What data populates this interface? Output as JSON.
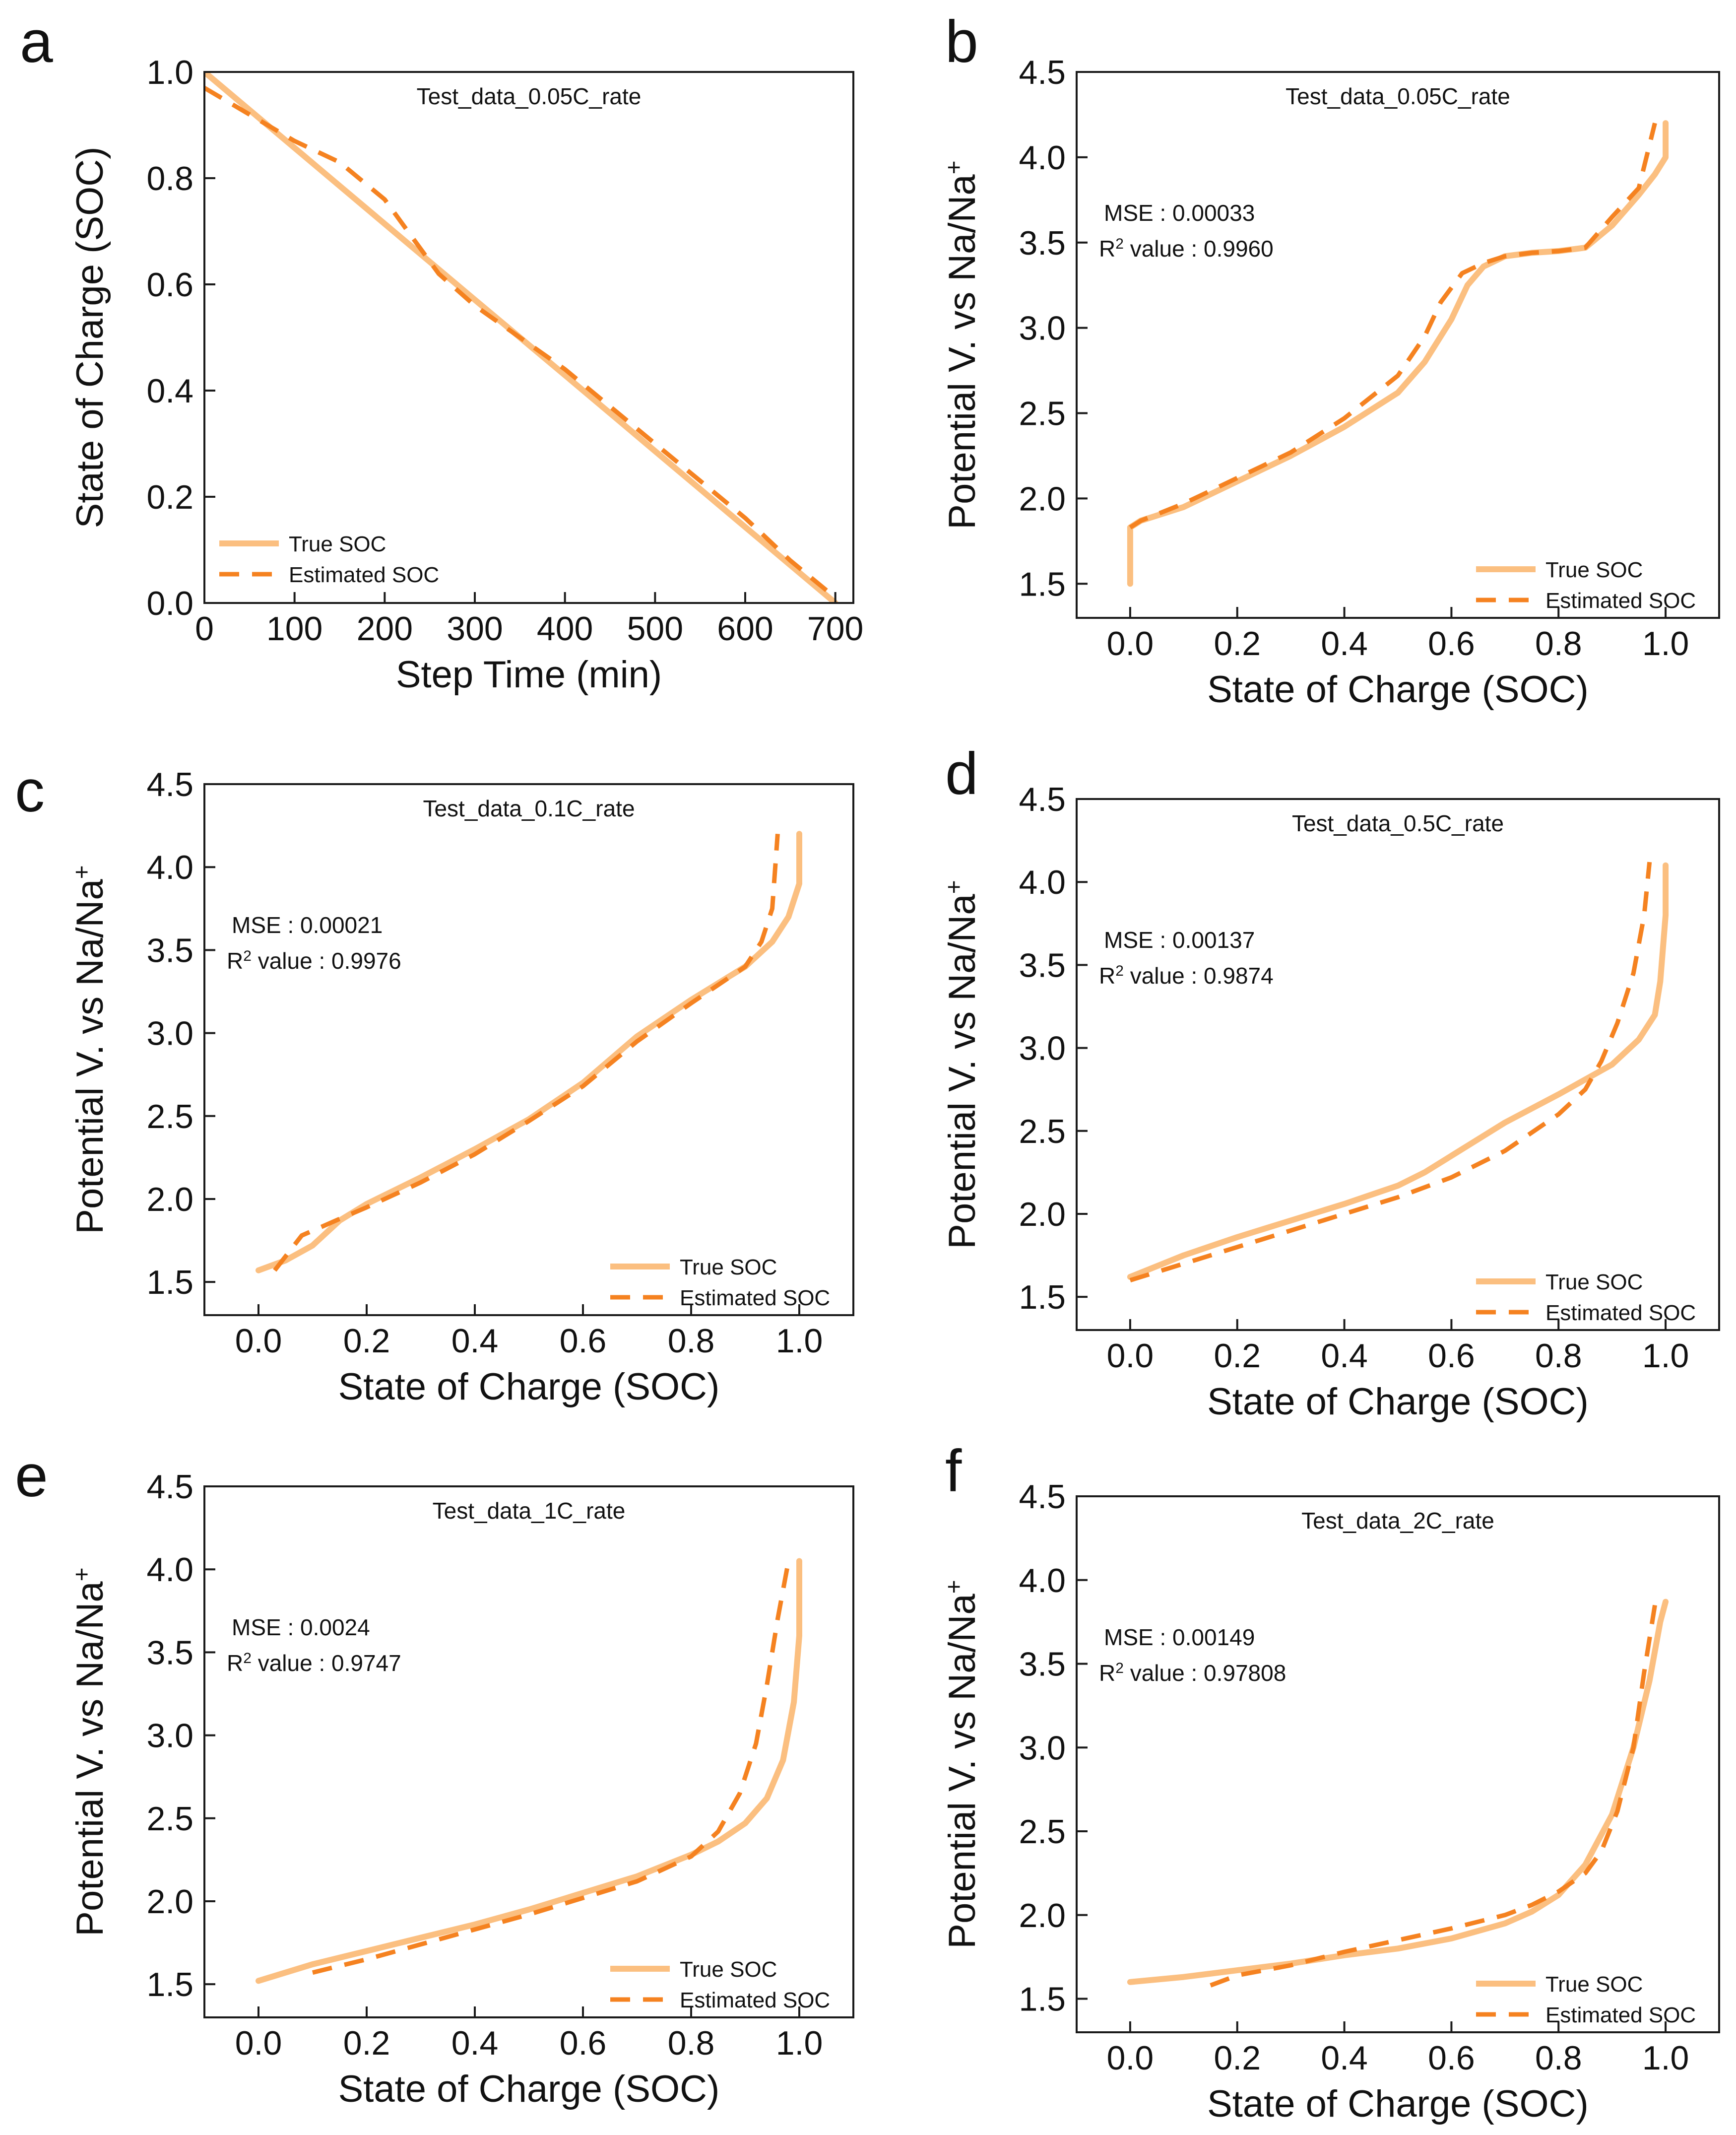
{
  "colors": {
    "true_soc": "#FBBF80",
    "estimated_soc": "#F58220",
    "axis": "#1a1a1a"
  },
  "chart_data": [
    {
      "panel": "a",
      "type": "line",
      "title": "Test_data_0.05C_rate",
      "xlabel": "Step Time (min)",
      "ylabel": "State of Charge (SOC)",
      "xlim": [
        0,
        720
      ],
      "ylim": [
        0,
        1.0
      ],
      "xticks": [
        0,
        100,
        200,
        300,
        400,
        500,
        600,
        700
      ],
      "yticks": [
        0.0,
        0.2,
        0.4,
        0.6,
        0.8,
        1.0
      ],
      "xtick_labels": [
        "0",
        "100",
        "200",
        "300",
        "400",
        "500",
        "600",
        "700"
      ],
      "ytick_labels": [
        "0.0",
        "0.2",
        "0.4",
        "0.6",
        "0.8",
        "1.0"
      ],
      "legend": {
        "position": "bottom-left",
        "entries": [
          "True SOC",
          "Estimated SOC"
        ]
      },
      "series": [
        {
          "name": "True SOC",
          "style": "solid",
          "x": [
            0,
            100,
            200,
            300,
            400,
            500,
            600,
            700
          ],
          "y": [
            1.0,
            0.857,
            0.714,
            0.571,
            0.429,
            0.286,
            0.143,
            0.0
          ]
        },
        {
          "name": "Estimated SOC",
          "style": "dashed",
          "x": [
            0,
            50,
            100,
            150,
            200,
            230,
            260,
            300,
            350,
            400,
            450,
            500,
            550,
            600,
            650,
            700
          ],
          "y": [
            0.97,
            0.92,
            0.87,
            0.83,
            0.76,
            0.69,
            0.62,
            0.56,
            0.5,
            0.44,
            0.37,
            0.3,
            0.23,
            0.16,
            0.08,
            0.01
          ]
        }
      ]
    },
    {
      "panel": "b",
      "type": "line",
      "title": "Test_data_0.05C_rate",
      "xlabel": "State of Charge (SOC)",
      "ylabel": "Potential V. vs Na/Na",
      "ylabel_superscript": "+",
      "xlim": [
        -0.1,
        1.1
      ],
      "ylim": [
        1.3,
        4.5
      ],
      "xticks": [
        0.0,
        0.2,
        0.4,
        0.6,
        0.8,
        1.0
      ],
      "yticks": [
        1.5,
        2.0,
        2.5,
        3.0,
        3.5,
        4.0,
        4.5
      ],
      "xtick_labels": [
        "0.0",
        "0.2",
        "0.4",
        "0.6",
        "0.8",
        "1.0"
      ],
      "ytick_labels": [
        "1.5",
        "2.0",
        "2.5",
        "3.0",
        "3.5",
        "4.0",
        "4.5"
      ],
      "mse_label": "MSE : 0.00033",
      "r2_prefix": "R",
      "r2_sup": "2",
      "r2_text": " value : 0.9960",
      "legend": {
        "position": "bottom-right",
        "entries": [
          "True SOC",
          "Estimated SOC"
        ]
      },
      "series": [
        {
          "name": "True SOC",
          "style": "solid",
          "x": [
            0.0,
            0.0,
            0.02,
            0.1,
            0.2,
            0.3,
            0.4,
            0.5,
            0.55,
            0.6,
            0.63,
            0.66,
            0.7,
            0.75,
            0.8,
            0.85,
            0.9,
            0.95,
            0.98,
            1.0,
            1.0
          ],
          "y": [
            1.5,
            1.83,
            1.87,
            1.95,
            2.1,
            2.25,
            2.42,
            2.62,
            2.8,
            3.05,
            3.25,
            3.36,
            3.42,
            3.44,
            3.45,
            3.47,
            3.6,
            3.78,
            3.9,
            4.0,
            4.2
          ]
        },
        {
          "name": "Estimated SOC",
          "style": "dashed",
          "x": [
            0.0,
            0.02,
            0.1,
            0.2,
            0.3,
            0.4,
            0.5,
            0.55,
            0.58,
            0.62,
            0.66,
            0.7,
            0.75,
            0.8,
            0.85,
            0.9,
            0.95,
            0.98
          ],
          "y": [
            1.83,
            1.87,
            1.97,
            2.12,
            2.27,
            2.47,
            2.72,
            2.95,
            3.15,
            3.32,
            3.38,
            3.42,
            3.44,
            3.45,
            3.47,
            3.65,
            3.82,
            4.2
          ]
        }
      ]
    },
    {
      "panel": "c",
      "type": "line",
      "title": "Test_data_0.1C_rate",
      "xlabel": "State of Charge (SOC)",
      "ylabel": "Potential V. vs Na/Na",
      "ylabel_superscript": "+",
      "xlim": [
        -0.1,
        1.1
      ],
      "ylim": [
        1.3,
        4.5
      ],
      "xticks": [
        0.0,
        0.2,
        0.4,
        0.6,
        0.8,
        1.0
      ],
      "yticks": [
        1.5,
        2.0,
        2.5,
        3.0,
        3.5,
        4.0,
        4.5
      ],
      "xtick_labels": [
        "0.0",
        "0.2",
        "0.4",
        "0.6",
        "0.8",
        "1.0"
      ],
      "ytick_labels": [
        "1.5",
        "2.0",
        "2.5",
        "3.0",
        "3.5",
        "4.0",
        "4.5"
      ],
      "mse_label": "MSE : 0.00021",
      "r2_prefix": "R",
      "r2_sup": "2",
      "r2_text": " value : 0.9976",
      "legend": {
        "position": "bottom-right",
        "entries": [
          "True SOC",
          "Estimated SOC"
        ]
      },
      "series": [
        {
          "name": "True SOC",
          "style": "solid",
          "x": [
            0.0,
            0.05,
            0.1,
            0.15,
            0.2,
            0.3,
            0.4,
            0.5,
            0.6,
            0.7,
            0.8,
            0.9,
            0.95,
            0.98,
            1.0,
            1.0
          ],
          "y": [
            1.57,
            1.63,
            1.72,
            1.87,
            1.97,
            2.13,
            2.3,
            2.48,
            2.7,
            2.98,
            3.2,
            3.4,
            3.55,
            3.7,
            3.9,
            4.2
          ]
        },
        {
          "name": "Estimated SOC",
          "style": "dashed",
          "x": [
            0.03,
            0.08,
            0.15,
            0.2,
            0.3,
            0.4,
            0.5,
            0.6,
            0.7,
            0.8,
            0.9,
            0.93,
            0.95,
            0.96
          ],
          "y": [
            1.57,
            1.78,
            1.88,
            1.95,
            2.1,
            2.27,
            2.47,
            2.68,
            2.95,
            3.18,
            3.4,
            3.55,
            3.75,
            4.2
          ]
        }
      ]
    },
    {
      "panel": "d",
      "type": "line",
      "title": "Test_data_0.5C_rate",
      "xlabel": "State of Charge (SOC)",
      "ylabel": "Potential V. vs Na/Na",
      "ylabel_superscript": "+",
      "xlim": [
        -0.1,
        1.1
      ],
      "ylim": [
        1.3,
        4.5
      ],
      "xticks": [
        0.0,
        0.2,
        0.4,
        0.6,
        0.8,
        1.0
      ],
      "yticks": [
        1.5,
        2.0,
        2.5,
        3.0,
        3.5,
        4.0,
        4.5
      ],
      "xtick_labels": [
        "0.0",
        "0.2",
        "0.4",
        "0.6",
        "0.8",
        "1.0"
      ],
      "ytick_labels": [
        "1.5",
        "2.0",
        "2.5",
        "3.0",
        "3.5",
        "4.0",
        "4.5"
      ],
      "mse_label": "MSE : 0.00137",
      "r2_prefix": "R",
      "r2_sup": "2",
      "r2_text": " value : 0.9874",
      "legend": {
        "position": "bottom-right",
        "entries": [
          "True SOC",
          "Estimated SOC"
        ]
      },
      "series": [
        {
          "name": "True SOC",
          "style": "solid",
          "x": [
            0.0,
            0.1,
            0.2,
            0.3,
            0.4,
            0.5,
            0.55,
            0.6,
            0.7,
            0.8,
            0.9,
            0.95,
            0.98,
            0.99,
            1.0,
            1.0
          ],
          "y": [
            1.62,
            1.75,
            1.86,
            1.96,
            2.06,
            2.17,
            2.25,
            2.35,
            2.55,
            2.72,
            2.9,
            3.05,
            3.2,
            3.4,
            3.8,
            4.1
          ]
        },
        {
          "name": "Estimated SOC",
          "style": "dashed",
          "x": [
            0.0,
            0.1,
            0.2,
            0.3,
            0.4,
            0.5,
            0.6,
            0.7,
            0.8,
            0.85,
            0.88,
            0.91,
            0.94,
            0.96,
            0.97
          ],
          "y": [
            1.6,
            1.7,
            1.8,
            1.9,
            2.0,
            2.1,
            2.22,
            2.38,
            2.6,
            2.75,
            2.92,
            3.15,
            3.45,
            3.8,
            4.12
          ]
        }
      ]
    },
    {
      "panel": "e",
      "type": "line",
      "title": "Test_data_1C_rate",
      "xlabel": "State of Charge (SOC)",
      "ylabel": "Potential V. vs Na/Na",
      "ylabel_superscript": "+",
      "xlim": [
        -0.1,
        1.1
      ],
      "ylim": [
        1.3,
        4.5
      ],
      "xticks": [
        0.0,
        0.2,
        0.4,
        0.6,
        0.8,
        1.0
      ],
      "yticks": [
        1.5,
        2.0,
        2.5,
        3.0,
        3.5,
        4.0,
        4.5
      ],
      "xtick_labels": [
        "0.0",
        "0.2",
        "0.4",
        "0.6",
        "0.8",
        "1.0"
      ],
      "ytick_labels": [
        "1.5",
        "2.0",
        "2.5",
        "3.0",
        "3.5",
        "4.0",
        "4.5"
      ],
      "mse_label": "MSE : 0.0024",
      "r2_prefix": "R",
      "r2_sup": "2",
      "r2_text": " value : 0.9747",
      "legend": {
        "position": "bottom-right",
        "entries": [
          "True SOC",
          "Estimated SOC"
        ]
      },
      "series": [
        {
          "name": "True SOC",
          "style": "solid",
          "x": [
            0.0,
            0.1,
            0.2,
            0.3,
            0.4,
            0.5,
            0.6,
            0.7,
            0.8,
            0.85,
            0.9,
            0.94,
            0.97,
            0.99,
            1.0,
            1.0
          ],
          "y": [
            1.52,
            1.62,
            1.7,
            1.78,
            1.86,
            1.95,
            2.05,
            2.15,
            2.28,
            2.36,
            2.47,
            2.62,
            2.85,
            3.2,
            3.6,
            4.05
          ]
        },
        {
          "name": "Estimated SOC",
          "style": "dashed",
          "x": [
            0.1,
            0.2,
            0.3,
            0.4,
            0.5,
            0.6,
            0.7,
            0.8,
            0.85,
            0.89,
            0.92,
            0.94,
            0.96,
            0.98
          ],
          "y": [
            1.57,
            1.65,
            1.74,
            1.83,
            1.92,
            2.02,
            2.12,
            2.27,
            2.42,
            2.65,
            2.95,
            3.3,
            3.7,
            4.05
          ]
        }
      ]
    },
    {
      "panel": "f",
      "type": "line",
      "title": "Test_data_2C_rate",
      "xlabel": "State of Charge (SOC)",
      "ylabel": "Potential V. vs Na/Na",
      "ylabel_superscript": "+",
      "xlim": [
        -0.1,
        1.1
      ],
      "ylim": [
        1.3,
        4.5
      ],
      "xticks": [
        0.0,
        0.2,
        0.4,
        0.6,
        0.8,
        1.0
      ],
      "yticks": [
        1.5,
        2.0,
        2.5,
        3.0,
        3.5,
        4.0,
        4.5
      ],
      "xtick_labels": [
        "0.0",
        "0.2",
        "0.4",
        "0.6",
        "0.8",
        "1.0"
      ],
      "ytick_labels": [
        "1.5",
        "2.0",
        "2.5",
        "3.0",
        "3.5",
        "4.0",
        "4.5"
      ],
      "mse_label": "MSE : 0.00149",
      "r2_prefix": "R",
      "r2_sup": "2",
      "r2_text": " value : 0.97808",
      "legend": {
        "position": "bottom-right",
        "entries": [
          "True SOC",
          "Estimated SOC"
        ]
      },
      "series": [
        {
          "name": "True SOC",
          "style": "solid",
          "x": [
            0.0,
            0.1,
            0.2,
            0.3,
            0.4,
            0.5,
            0.6,
            0.7,
            0.75,
            0.8,
            0.85,
            0.9,
            0.94,
            0.97,
            0.99,
            1.0
          ],
          "y": [
            1.6,
            1.63,
            1.67,
            1.71,
            1.76,
            1.8,
            1.86,
            1.95,
            2.02,
            2.12,
            2.3,
            2.6,
            3.0,
            3.4,
            3.75,
            3.87
          ]
        },
        {
          "name": "Estimated SOC",
          "style": "dashed",
          "x": [
            0.15,
            0.2,
            0.3,
            0.4,
            0.5,
            0.6,
            0.7,
            0.75,
            0.8,
            0.85,
            0.88,
            0.91,
            0.94,
            0.96,
            0.98
          ],
          "y": [
            1.58,
            1.64,
            1.7,
            1.78,
            1.85,
            1.92,
            2.0,
            2.06,
            2.14,
            2.25,
            2.38,
            2.62,
            3.0,
            3.45,
            3.85
          ]
        }
      ]
    }
  ]
}
